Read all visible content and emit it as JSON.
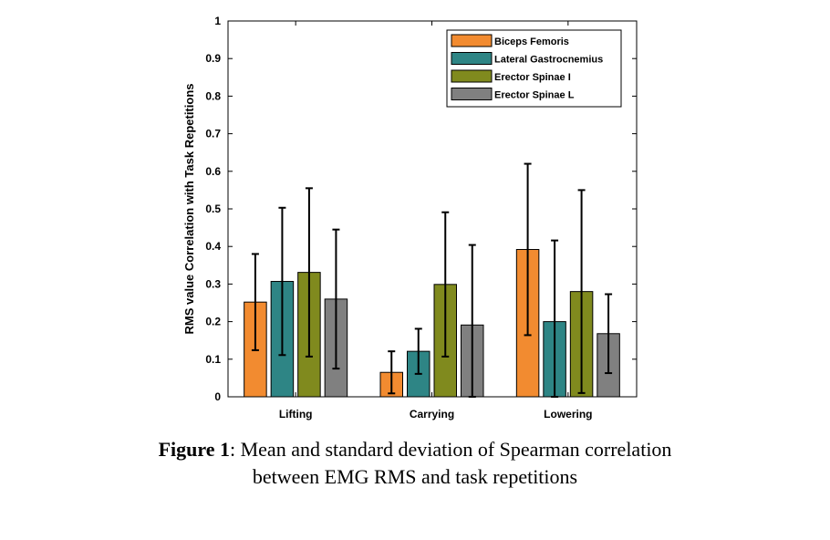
{
  "chart_data": {
    "type": "bar",
    "categories": [
      "Lifting",
      "Carrying",
      "Lowering"
    ],
    "series": [
      {
        "name": "Biceps Femoris",
        "color": "#f28b30",
        "values": [
          0.252,
          0.065,
          0.392
        ],
        "error": [
          0.128,
          0.056,
          0.228
        ]
      },
      {
        "name": "Lateral Gastrocnemius",
        "color": "#2e8585",
        "values": [
          0.307,
          0.121,
          0.2
        ],
        "error": [
          0.196,
          0.06,
          0.216
        ]
      },
      {
        "name": "Erector Spinae I",
        "color": "#808a1e",
        "values": [
          0.331,
          0.299,
          0.28
        ],
        "error": [
          0.224,
          0.192,
          0.27
        ]
      },
      {
        "name": "Erector Spinae L",
        "color": "#808080",
        "values": [
          0.26,
          0.191,
          0.168
        ],
        "error": [
          0.185,
          0.213,
          0.105
        ]
      }
    ],
    "ylabel": "RMS value Correlation with Task Repetitions",
    "ylim": [
      0,
      1
    ],
    "yticks": [
      "0",
      "0.1",
      "0.2",
      "0.3",
      "0.4",
      "0.5",
      "0.6",
      "0.7",
      "0.8",
      "0.9",
      "1"
    ],
    "legend_position": "top-right",
    "grid": false
  },
  "caption": {
    "label": "Figure 1",
    "text": ": Mean and standard deviation of Spearman correlation",
    "line2": "between EMG RMS and task repetitions"
  }
}
